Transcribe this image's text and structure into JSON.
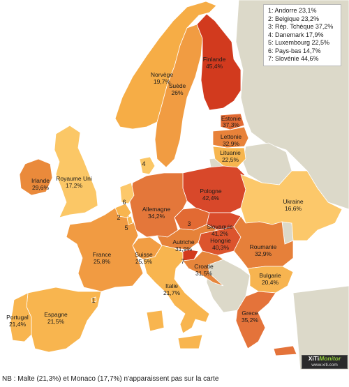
{
  "legend": [
    "1: Andorre 23,1%",
    "2: Belgique 23,2%",
    "3: Rép. Tchèque 37,2%",
    "4: Danemark 17,9%",
    "5: Luxembourg 22,5%",
    "6: Pays-bas 14,7%",
    "7: Slovénie 44,6%"
  ],
  "countries": {
    "finlande": {
      "name": "Finlande",
      "value": "45,4%",
      "color": "#d23a1e"
    },
    "norvege": {
      "name": "Norvège",
      "value": "19,7%",
      "color": "#f6ad46"
    },
    "suede": {
      "name": "Suède",
      "value": "26%",
      "color": "#f19c42"
    },
    "estonie": {
      "name": "Estonie",
      "value": "37,3%",
      "color": "#e26a33"
    },
    "lettonie": {
      "name": "Lettonie",
      "value": "32,9%",
      "color": "#e8823a"
    },
    "lituanie": {
      "name": "Lituanie",
      "value": "22,5%",
      "color": "#f7b64f"
    },
    "irlande": {
      "name": "Irlande",
      "value": "29,6%",
      "color": "#ea8a3b"
    },
    "royaume_uni": {
      "name": "Royaume Uni",
      "value": "17,2%",
      "color": "#fbc766"
    },
    "pologne": {
      "name": "Pologne",
      "value": "42,4%",
      "color": "#d8482a"
    },
    "ukraine": {
      "name": "Ukraine",
      "value": "16,6%",
      "color": "#fcc86a"
    },
    "allemagne": {
      "name": "Allemagne",
      "value": "34,2%",
      "color": "#e4773a"
    },
    "slovaquie": {
      "name": "Slovaquie",
      "value": "41,2%",
      "color": "#d94b2b"
    },
    "hongrie": {
      "name": "Hongrie",
      "value": "40,3%",
      "color": "#dc542d"
    },
    "autriche": {
      "name": "Autriche",
      "value": "31,9%",
      "color": "#e68239"
    },
    "roumanie": {
      "name": "Roumanie",
      "value": "32,9%",
      "color": "#e6803a"
    },
    "france": {
      "name": "France",
      "value": "25,8%",
      "color": "#f19b42"
    },
    "suisse": {
      "name": "Suisse",
      "value": "25,5%",
      "color": "#f29e44"
    },
    "croatie": {
      "name": "Croatie",
      "value": "31,5%",
      "color": "#e6853b"
    },
    "bulgarie": {
      "name": "Bulgarie",
      "value": "20,4%",
      "color": "#f7b450"
    },
    "italie": {
      "name": "Italie",
      "value": "21,7%",
      "color": "#f8b54f"
    },
    "espagne": {
      "name": "Espagne",
      "value": "21,5%",
      "color": "#f8b54f"
    },
    "portugal": {
      "name": "Portugal",
      "value": "21,4%",
      "color": "#f8b54f"
    },
    "grece": {
      "name": "Grece",
      "value": "35,2%",
      "color": "#e4733a"
    }
  },
  "small_markers": {
    "andorre": "1",
    "belgique": "2",
    "rep_tcheque": "3",
    "danemark": "4",
    "luxembourg": "5",
    "pays_bas": "6",
    "slovenie": "7"
  },
  "colors": {
    "no_data": "#dcd9c9",
    "border": "#ffffff",
    "dot_gray": "#8a8a8a"
  },
  "logo": {
    "brand_a": "XiTi",
    "brand_b": "Monitor",
    "url": "www.xiti.com"
  },
  "footnote": "NB : Malte (21,3%) et Monaco (17,7%) n'apparaissent pas sur la carte"
}
